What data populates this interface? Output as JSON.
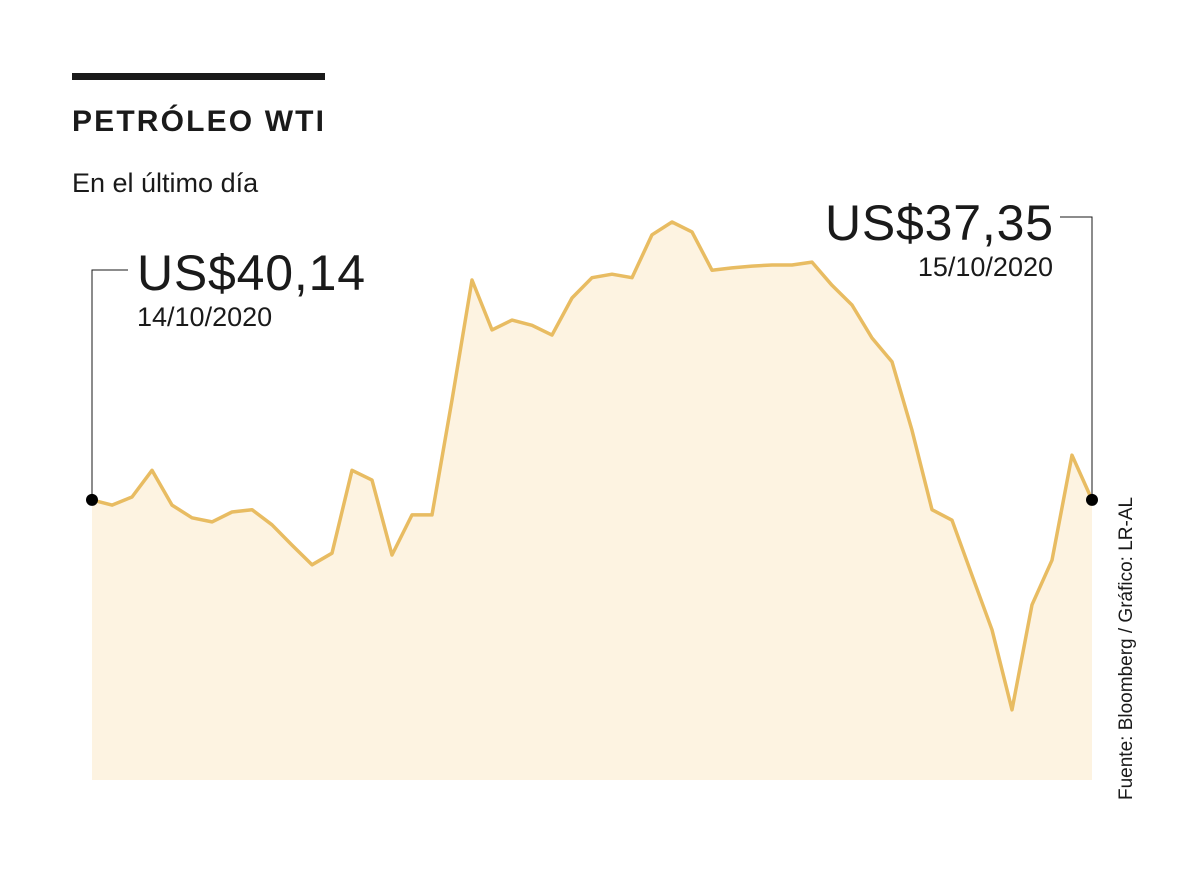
{
  "chart_data": {
    "type": "area",
    "title": "PETRÓLEO WTI",
    "subtitle": "En el último día",
    "source": "Fuente: Bloomberg / Gráfico: LR-AL",
    "values": [
      48.3,
      47.4,
      48.8,
      53.4,
      47.4,
      45.2,
      44.5,
      46.2,
      46.6,
      44.0,
      40.5,
      37.1,
      39.1,
      53.4,
      51.7,
      38.8,
      45.7,
      45.7,
      65.5,
      86.2,
      77.6,
      79.3,
      78.4,
      76.7,
      83.1,
      86.6,
      87.2,
      86.6,
      94.0,
      96.2,
      94.5,
      87.9,
      88.3,
      88.6,
      88.8,
      88.8,
      89.3,
      85.3,
      81.9,
      76.2,
      72.1,
      60.3,
      46.6,
      44.8,
      35.3,
      25.9,
      12.1,
      30.2,
      37.9,
      56.0,
      48.3
    ],
    "ylim": [
      0,
      100
    ],
    "color": "#e8bc62",
    "fill": "#fdf3e1",
    "annotations": [
      {
        "label": "US$40,14",
        "date": "14/10/2020"
      },
      {
        "label": "US$37,35",
        "date": "15/10/2020"
      }
    ]
  }
}
